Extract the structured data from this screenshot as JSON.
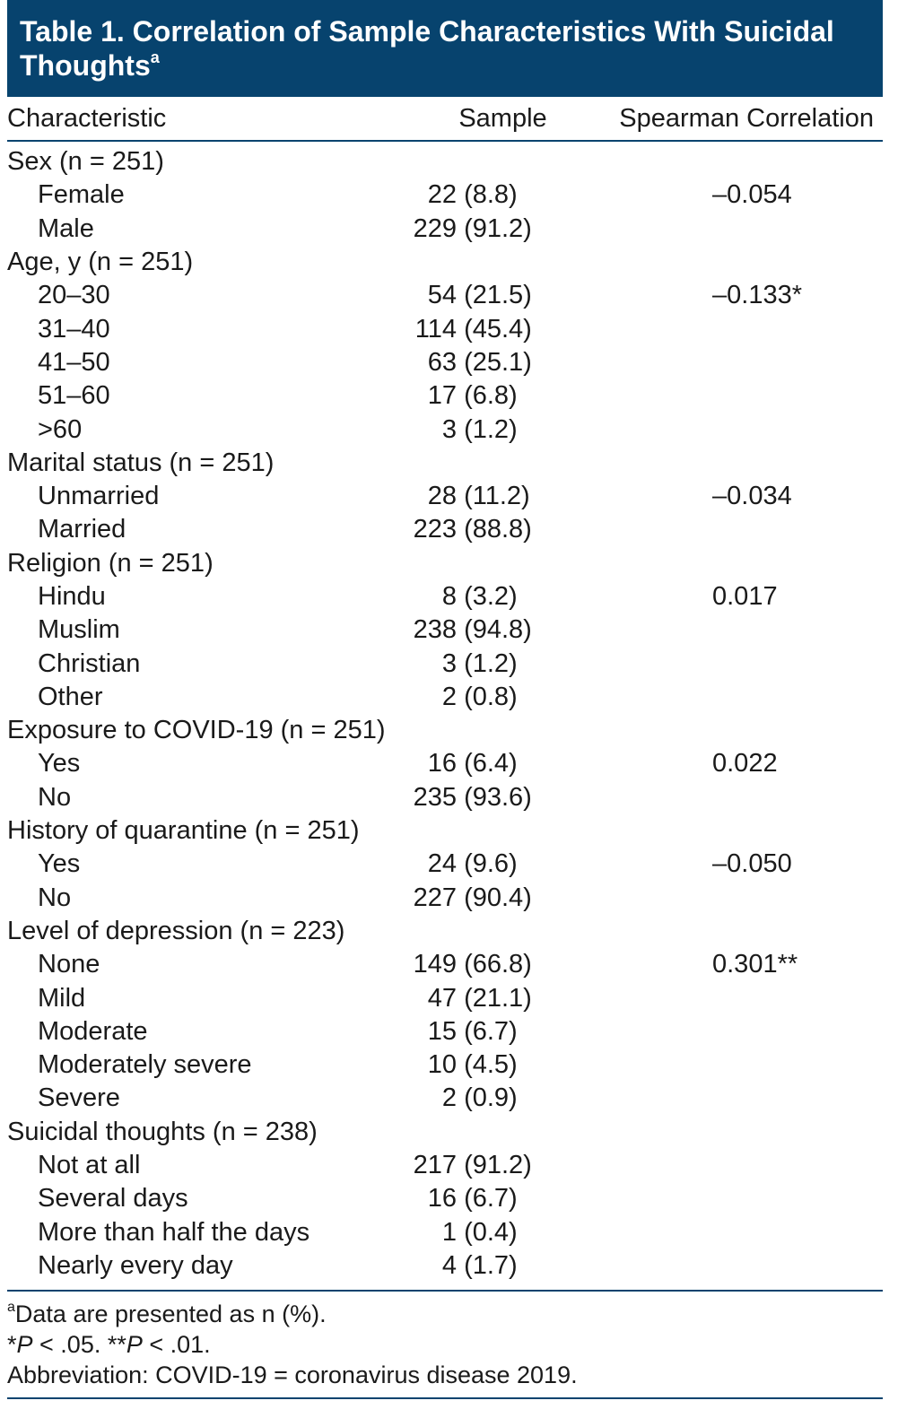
{
  "table": {
    "title": "Table 1. Correlation of Sample Characteristics With Suicidal Thoughts",
    "title_sup": "a",
    "headers": {
      "characteristic": "Characteristic",
      "sample": "Sample",
      "correlation": "Spearman Correlation"
    },
    "rows": [
      {
        "label": "Sex (n = 251)",
        "type": "group",
        "n": "",
        "pct": "",
        "corr": ""
      },
      {
        "label": "Female",
        "type": "sub",
        "n": "22",
        "pct": "(8.8)",
        "corr": "–0.054"
      },
      {
        "label": "Male",
        "type": "sub",
        "n": "229",
        "pct": "(91.2)",
        "corr": ""
      },
      {
        "label": "Age, y (n = 251)",
        "type": "group",
        "n": "",
        "pct": "",
        "corr": ""
      },
      {
        "label": "20–30",
        "type": "sub",
        "n": "54",
        "pct": "(21.5)",
        "corr": "–0.133*"
      },
      {
        "label": "31–40",
        "type": "sub",
        "n": "114",
        "pct": "(45.4)",
        "corr": ""
      },
      {
        "label": "41–50",
        "type": "sub",
        "n": "63",
        "pct": "(25.1)",
        "corr": ""
      },
      {
        "label": "51–60",
        "type": "sub",
        "n": "17",
        "pct": "(6.8)",
        "corr": ""
      },
      {
        "label": ">60",
        "type": "sub",
        "n": "3",
        "pct": "(1.2)",
        "corr": ""
      },
      {
        "label": "Marital status (n = 251)",
        "type": "group",
        "n": "",
        "pct": "",
        "corr": ""
      },
      {
        "label": "Unmarried",
        "type": "sub",
        "n": "28",
        "pct": "(11.2)",
        "corr": "–0.034"
      },
      {
        "label": "Married",
        "type": "sub",
        "n": "223",
        "pct": "(88.8)",
        "corr": ""
      },
      {
        "label": "Religion (n = 251)",
        "type": "group",
        "n": "",
        "pct": "",
        "corr": ""
      },
      {
        "label": "Hindu",
        "type": "sub",
        "n": "8",
        "pct": "(3.2)",
        "corr": "0.017"
      },
      {
        "label": "Muslim",
        "type": "sub",
        "n": "238",
        "pct": "(94.8)",
        "corr": ""
      },
      {
        "label": "Christian",
        "type": "sub",
        "n": "3",
        "pct": "(1.2)",
        "corr": ""
      },
      {
        "label": "Other",
        "type": "sub",
        "n": "2",
        "pct": "(0.8)",
        "corr": ""
      },
      {
        "label": "Exposure to COVID-19 (n = 251)",
        "type": "group",
        "n": "",
        "pct": "",
        "corr": ""
      },
      {
        "label": "Yes",
        "type": "sub",
        "n": "16",
        "pct": "(6.4)",
        "corr": "0.022"
      },
      {
        "label": "No",
        "type": "sub",
        "n": "235",
        "pct": "(93.6)",
        "corr": ""
      },
      {
        "label": "History of quarantine (n = 251)",
        "type": "group",
        "n": "",
        "pct": "",
        "corr": ""
      },
      {
        "label": "Yes",
        "type": "sub",
        "n": "24",
        "pct": "(9.6)",
        "corr": "–0.050"
      },
      {
        "label": "No",
        "type": "sub",
        "n": "227",
        "pct": "(90.4)",
        "corr": ""
      },
      {
        "label": "Level of depression (n = 223)",
        "type": "group",
        "n": "",
        "pct": "",
        "corr": ""
      },
      {
        "label": "None",
        "type": "sub",
        "n": "149",
        "pct": "(66.8)",
        "corr": "0.301**"
      },
      {
        "label": "Mild",
        "type": "sub",
        "n": "47",
        "pct": "(21.1)",
        "corr": ""
      },
      {
        "label": "Moderate",
        "type": "sub",
        "n": "15",
        "pct": "(6.7)",
        "corr": ""
      },
      {
        "label": "Moderately severe",
        "type": "sub",
        "n": "10",
        "pct": "(4.5)",
        "corr": ""
      },
      {
        "label": "Severe",
        "type": "sub",
        "n": "2",
        "pct": "(0.9)",
        "corr": ""
      },
      {
        "label": "Suicidal thoughts (n = 238)",
        "type": "group",
        "n": "",
        "pct": "",
        "corr": ""
      },
      {
        "label": "Not at all",
        "type": "sub",
        "n": "217",
        "pct": "(91.2)",
        "corr": ""
      },
      {
        "label": "Several days",
        "type": "sub",
        "n": "16",
        "pct": "(6.7)",
        "corr": ""
      },
      {
        "label": "More than half the days",
        "type": "sub",
        "n": "1",
        "pct": "(0.4)",
        "corr": ""
      },
      {
        "label": "Nearly every day",
        "type": "sub",
        "n": "4",
        "pct": "(1.7)",
        "corr": ""
      }
    ],
    "footnotes": {
      "note_a_sup": "a",
      "note_a_text": "Data are presented as n (%).",
      "sig_1_star": "*",
      "sig_1_p": "P",
      "sig_1_rest": " < .05. ",
      "sig_2_star": "**",
      "sig_2_p": "P",
      "sig_2_rest": " < .01.",
      "abbreviation": "Abbreviation: COVID-19 = coronavirus disease 2019."
    }
  },
  "colors": {
    "header_bg": "#07436e",
    "rule": "#07436e",
    "text": "#1a1a1a"
  }
}
